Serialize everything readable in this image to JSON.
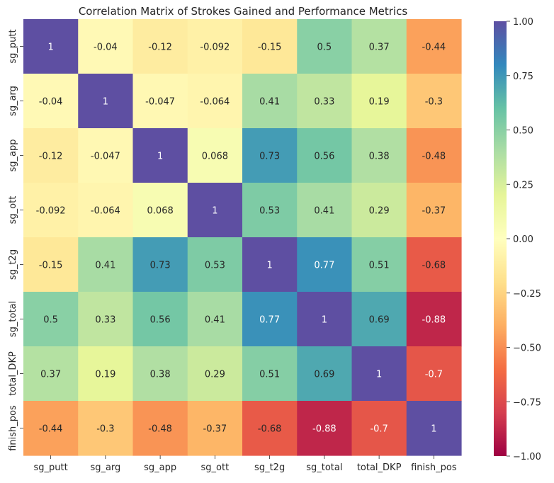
{
  "chart_data": {
    "type": "heatmap",
    "title": "Correlation Matrix of Strokes Gained and Performance Metrics",
    "xlabel": "",
    "ylabel": "",
    "x_categories": [
      "sg_putt",
      "sg_arg",
      "sg_app",
      "sg_ott",
      "sg_t2g",
      "sg_total",
      "total_DKP",
      "finish_pos"
    ],
    "y_categories": [
      "sg_putt",
      "sg_arg",
      "sg_app",
      "sg_ott",
      "sg_t2g",
      "sg_total",
      "total_DKP",
      "finish_pos"
    ],
    "values": [
      [
        1,
        -0.04,
        -0.12,
        -0.092,
        -0.15,
        0.5,
        0.37,
        -0.44
      ],
      [
        -0.04,
        1,
        -0.047,
        -0.064,
        0.41,
        0.33,
        0.19,
        -0.3
      ],
      [
        -0.12,
        -0.047,
        1,
        0.068,
        0.73,
        0.56,
        0.38,
        -0.48
      ],
      [
        -0.092,
        -0.064,
        0.068,
        1,
        0.53,
        0.41,
        0.29,
        -0.37
      ],
      [
        -0.15,
        0.41,
        0.73,
        0.53,
        1,
        0.77,
        0.51,
        -0.68
      ],
      [
        0.5,
        0.33,
        0.56,
        0.41,
        0.77,
        1,
        0.69,
        -0.88
      ],
      [
        0.37,
        0.19,
        0.38,
        0.29,
        0.51,
        0.69,
        1,
        -0.7
      ],
      [
        -0.44,
        -0.3,
        -0.48,
        -0.37,
        -0.68,
        -0.88,
        -0.7,
        1
      ]
    ],
    "colorbar": {
      "colormap": "Spectral",
      "range": [
        -1,
        1
      ],
      "ticks": [
        1.0,
        0.75,
        0.5,
        0.25,
        0.0,
        -0.25,
        -0.5,
        -0.75,
        -1.0
      ],
      "tick_labels": [
        "1.00",
        "0.75",
        "0.50",
        "0.25",
        "0.00",
        "−0.25",
        "−0.50",
        "−0.75",
        "−1.00"
      ]
    },
    "annotations": true,
    "grid": false
  }
}
